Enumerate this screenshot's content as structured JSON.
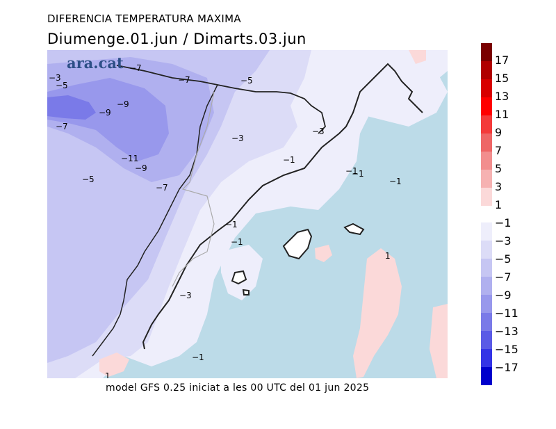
{
  "header": {
    "title": "DIFERENCIA TEMPERATURA MAXIMA",
    "subtitle": "Diumenge.01.jun  /  Dimarts.03.jun"
  },
  "logo": "ara.cat",
  "caption": "model GFS 0.25 iniciat a les 00 UTC del 01 jun 2025",
  "legend": {
    "positive": [
      {
        "label": "17",
        "color": "#7a0000"
      },
      {
        "label": "15",
        "color": "#b00000"
      },
      {
        "label": "13",
        "color": "#d80000"
      },
      {
        "label": "11",
        "color": "#ff0000"
      },
      {
        "label": "9",
        "color": "#f43a3a"
      },
      {
        "label": "7",
        "color": "#ee6666"
      },
      {
        "label": "5",
        "color": "#f28e8e"
      },
      {
        "label": "3",
        "color": "#f6b2b2"
      },
      {
        "label": "1",
        "color": "#fbd9d9"
      }
    ],
    "negative": [
      {
        "label": "-1",
        "color": "#eeeefb"
      },
      {
        "label": "-3",
        "color": "#dcdcf7"
      },
      {
        "label": "-5",
        "color": "#c6c6f3"
      },
      {
        "label": "-7",
        "color": "#b0b0ef"
      },
      {
        "label": "-9",
        "color": "#9898ec"
      },
      {
        "label": "-11",
        "color": "#7a7ae8"
      },
      {
        "label": "-13",
        "color": "#5a5ae6"
      },
      {
        "label": "-15",
        "color": "#3434e6"
      },
      {
        "label": "-17",
        "color": "#0000cc"
      }
    ]
  },
  "contour_labels": [
    {
      "text": "-3"
    },
    {
      "text": "-5"
    },
    {
      "text": "-7"
    },
    {
      "text": "-7"
    },
    {
      "text": "-5"
    },
    {
      "text": "-9"
    },
    {
      "text": "-9"
    },
    {
      "text": "-7"
    },
    {
      "text": "-11"
    },
    {
      "text": "-9"
    },
    {
      "text": "-5"
    },
    {
      "text": "-7"
    },
    {
      "text": "-3"
    },
    {
      "text": "-3"
    },
    {
      "text": "-1"
    },
    {
      "text": "-1"
    },
    {
      "text": "-1"
    },
    {
      "text": "-1"
    },
    {
      "text": "-1"
    },
    {
      "text": "-1"
    },
    {
      "text": "-3"
    },
    {
      "text": "1"
    },
    {
      "text": "-1"
    },
    {
      "text": "1"
    }
  ],
  "colors": {
    "sea": "#bcdbe8",
    "land_border": "#222222",
    "region_border": "#a8a8a8"
  }
}
